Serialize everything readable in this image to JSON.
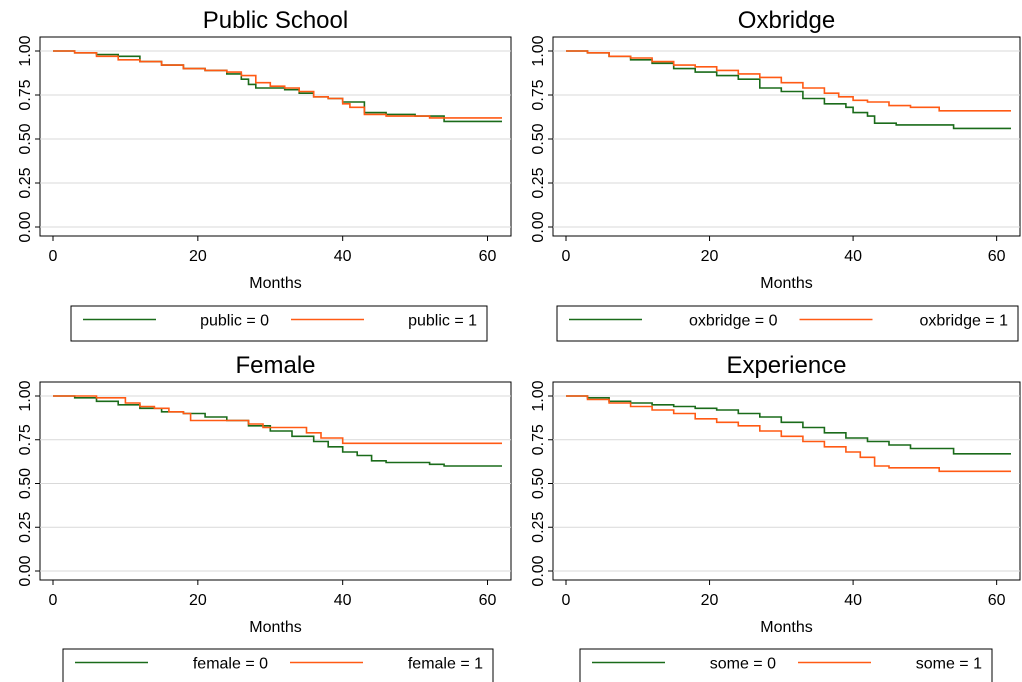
{
  "colors": {
    "group0": "#1a6b1a",
    "group1": "#ff5a14",
    "grid": "#d9d9d9",
    "frame": "#000000"
  },
  "chart_data": [
    {
      "type": "line",
      "title": "Public School",
      "xlabel": "Months",
      "ylabel": "",
      "xlim": [
        0,
        62
      ],
      "ylim": [
        0,
        1
      ],
      "xticks": [
        0,
        20,
        40,
        60
      ],
      "yticks": [
        0,
        0.25,
        0.5,
        0.75,
        1
      ],
      "ytick_labels": [
        "0.00",
        "0.25",
        "0.50",
        "0.75",
        "1.00"
      ],
      "grid": true,
      "legend_position": "bottom",
      "series": [
        {
          "name": "public = 0",
          "x": [
            0,
            3,
            6,
            9,
            12,
            15,
            18,
            21,
            24,
            26,
            27,
            28,
            30,
            32,
            34,
            36,
            38,
            40,
            43,
            46,
            50,
            54,
            58,
            62
          ],
          "y": [
            1.0,
            0.99,
            0.98,
            0.97,
            0.94,
            0.92,
            0.9,
            0.89,
            0.87,
            0.84,
            0.81,
            0.79,
            0.79,
            0.78,
            0.76,
            0.74,
            0.73,
            0.71,
            0.65,
            0.64,
            0.63,
            0.6,
            0.6,
            0.6
          ]
        },
        {
          "name": "public = 1",
          "x": [
            0,
            3,
            6,
            9,
            12,
            15,
            18,
            21,
            24,
            26,
            28,
            30,
            32,
            34,
            36,
            38,
            40,
            41,
            43,
            46,
            50,
            52,
            56,
            62
          ],
          "y": [
            1.0,
            0.99,
            0.97,
            0.95,
            0.94,
            0.92,
            0.9,
            0.89,
            0.88,
            0.86,
            0.82,
            0.8,
            0.79,
            0.77,
            0.74,
            0.73,
            0.7,
            0.68,
            0.64,
            0.63,
            0.63,
            0.62,
            0.62,
            0.62
          ]
        }
      ]
    },
    {
      "type": "line",
      "title": "Oxbridge",
      "xlabel": "Months",
      "ylabel": "",
      "xlim": [
        0,
        62
      ],
      "ylim": [
        0,
        1
      ],
      "xticks": [
        0,
        20,
        40,
        60
      ],
      "yticks": [
        0,
        0.25,
        0.5,
        0.75,
        1
      ],
      "ytick_labels": [
        "0.00",
        "0.25",
        "0.50",
        "0.75",
        "1.00"
      ],
      "grid": true,
      "legend_position": "bottom",
      "series": [
        {
          "name": "oxbridge = 0",
          "x": [
            0,
            3,
            6,
            9,
            12,
            15,
            18,
            21,
            24,
            27,
            30,
            33,
            36,
            39,
            40,
            42,
            43,
            46,
            50,
            54,
            58,
            62
          ],
          "y": [
            1.0,
            0.99,
            0.97,
            0.95,
            0.93,
            0.9,
            0.88,
            0.86,
            0.84,
            0.79,
            0.77,
            0.73,
            0.7,
            0.68,
            0.65,
            0.63,
            0.59,
            0.58,
            0.58,
            0.56,
            0.56,
            0.56
          ]
        },
        {
          "name": "oxbridge = 1",
          "x": [
            0,
            3,
            6,
            9,
            12,
            15,
            18,
            21,
            24,
            27,
            30,
            33,
            36,
            38,
            40,
            42,
            45,
            48,
            50,
            52,
            56,
            62
          ],
          "y": [
            1.0,
            0.99,
            0.97,
            0.96,
            0.94,
            0.92,
            0.91,
            0.89,
            0.87,
            0.85,
            0.82,
            0.79,
            0.76,
            0.74,
            0.72,
            0.71,
            0.69,
            0.68,
            0.68,
            0.66,
            0.66,
            0.66
          ]
        }
      ]
    },
    {
      "type": "line",
      "title": "Female",
      "xlabel": "Months",
      "ylabel": "",
      "xlim": [
        0,
        62
      ],
      "ylim": [
        0,
        1
      ],
      "xticks": [
        0,
        20,
        40,
        60
      ],
      "yticks": [
        0,
        0.25,
        0.5,
        0.75,
        1
      ],
      "ytick_labels": [
        "0.00",
        "0.25",
        "0.50",
        "0.75",
        "1.00"
      ],
      "grid": true,
      "legend_position": "bottom",
      "series": [
        {
          "name": "female = 0",
          "x": [
            0,
            3,
            6,
            9,
            12,
            15,
            18,
            21,
            24,
            27,
            30,
            33,
            36,
            38,
            40,
            42,
            44,
            46,
            50,
            52,
            54,
            58,
            62
          ],
          "y": [
            1.0,
            0.99,
            0.97,
            0.95,
            0.93,
            0.91,
            0.9,
            0.88,
            0.86,
            0.83,
            0.8,
            0.77,
            0.74,
            0.71,
            0.68,
            0.66,
            0.63,
            0.62,
            0.62,
            0.61,
            0.6,
            0.6,
            0.6
          ]
        },
        {
          "name": "female = 1",
          "x": [
            0,
            4,
            6,
            8,
            10,
            12,
            14,
            16,
            18,
            19,
            23,
            27,
            29,
            33,
            35,
            37,
            40,
            42,
            46,
            50,
            56,
            62
          ],
          "y": [
            1.0,
            1.0,
            0.99,
            0.99,
            0.96,
            0.94,
            0.93,
            0.91,
            0.9,
            0.86,
            0.86,
            0.84,
            0.82,
            0.82,
            0.79,
            0.76,
            0.73,
            0.73,
            0.73,
            0.73,
            0.73,
            0.73
          ]
        }
      ]
    },
    {
      "type": "line",
      "title": "Experience",
      "xlabel": "Months",
      "ylabel": "",
      "xlim": [
        0,
        62
      ],
      "ylim": [
        0,
        1
      ],
      "xticks": [
        0,
        20,
        40,
        60
      ],
      "yticks": [
        0,
        0.25,
        0.5,
        0.75,
        1
      ],
      "ytick_labels": [
        "0.00",
        "0.25",
        "0.50",
        "0.75",
        "1.00"
      ],
      "grid": true,
      "legend_position": "bottom",
      "series": [
        {
          "name": "some = 0",
          "x": [
            0,
            3,
            6,
            9,
            12,
            15,
            18,
            21,
            24,
            27,
            30,
            33,
            36,
            39,
            42,
            45,
            48,
            51,
            54,
            58,
            62
          ],
          "y": [
            1.0,
            0.99,
            0.97,
            0.96,
            0.95,
            0.94,
            0.93,
            0.92,
            0.9,
            0.88,
            0.85,
            0.82,
            0.79,
            0.76,
            0.74,
            0.72,
            0.7,
            0.7,
            0.67,
            0.67,
            0.67
          ]
        },
        {
          "name": "some = 1",
          "x": [
            0,
            3,
            6,
            9,
            12,
            15,
            18,
            21,
            24,
            27,
            30,
            33,
            36,
            39,
            41,
            43,
            45,
            48,
            51,
            52,
            56,
            62
          ],
          "y": [
            1.0,
            0.98,
            0.96,
            0.94,
            0.92,
            0.9,
            0.87,
            0.85,
            0.83,
            0.8,
            0.77,
            0.74,
            0.71,
            0.68,
            0.65,
            0.6,
            0.59,
            0.59,
            0.59,
            0.57,
            0.57,
            0.57
          ]
        }
      ]
    }
  ]
}
